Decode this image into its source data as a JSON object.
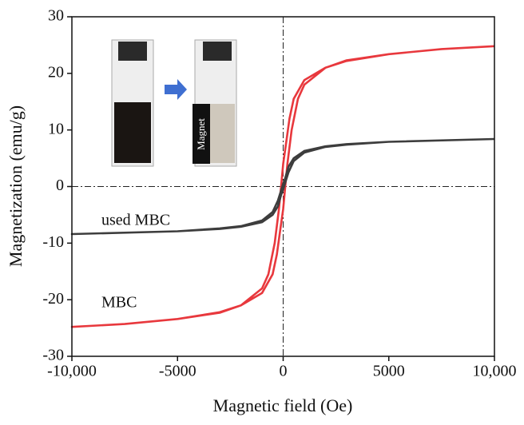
{
  "chart_data": {
    "type": "line",
    "x_label": "Magnetic field (Oe)",
    "y_label": "Magnetization (emu/g)",
    "annotations": [
      "used MBC",
      "MBC"
    ],
    "inset_label": "Magnet",
    "xlim": [
      -10000,
      10000
    ],
    "ylim": [
      -30,
      30
    ],
    "xticks": [
      {
        "value": -10000,
        "label": "-10,000"
      },
      -5000,
      0,
      5000,
      {
        "value": 10000,
        "label": "10,000"
      }
    ],
    "yticks": [
      -30,
      -20,
      -10,
      0,
      10,
      20,
      30
    ],
    "series": [
      {
        "name": "MBC",
        "color": "#e8383d",
        "x": [
          10000,
          7500,
          5000,
          3000,
          2000,
          1000,
          500,
          300,
          150,
          0,
          -100,
          -200,
          -400,
          -700,
          -1000,
          -2000,
          -3000,
          -5000,
          -7500,
          -10000,
          -7500,
          -5000,
          -3000,
          -2000,
          -1000,
          -500,
          -300,
          -150,
          0,
          100,
          200,
          400,
          700,
          1000,
          2000,
          3000,
          5000,
          7500,
          10000
        ],
        "values": [
          24.8,
          24.3,
          23.4,
          22.2,
          21,
          18.8,
          15.5,
          12,
          8,
          4,
          0,
          -4,
          -10,
          -15.5,
          -18,
          -21,
          -22.3,
          -23.4,
          -24.3,
          -24.8,
          -24.3,
          -23.4,
          -22.2,
          -21,
          -18.8,
          -15.5,
          -12,
          -8,
          -4,
          0,
          4,
          10,
          15.5,
          18,
          21,
          22.3,
          23.4,
          24.3,
          24.8
        ]
      },
      {
        "name": "used MBC",
        "color": "#3d3d3d",
        "x": [
          10000,
          5000,
          3000,
          2000,
          1000,
          500,
          250,
          100,
          0,
          -100,
          -250,
          -500,
          -1000,
          -2000,
          -3000,
          -5000,
          -10000,
          -5000,
          -3000,
          -2000,
          -1000,
          -500,
          -250,
          -100,
          0,
          100,
          250,
          500,
          1000,
          2000,
          3000,
          5000,
          10000
        ],
        "values": [
          8.4,
          7.9,
          7.5,
          7.1,
          6.3,
          5,
          3.5,
          1.5,
          0.5,
          -0.7,
          -2.5,
          -4.5,
          -6,
          -7,
          -7.4,
          -7.9,
          -8.4,
          -7.9,
          -7.5,
          -7.1,
          -6.3,
          -5,
          -3.5,
          -1.5,
          -0.5,
          0.7,
          2.5,
          4.5,
          6,
          7,
          7.4,
          7.9,
          8.4
        ]
      }
    ]
  }
}
